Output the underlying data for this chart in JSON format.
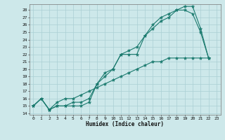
{
  "xlabel": "Humidex (Indice chaleur)",
  "ylabel": "",
  "xlim": [
    -0.5,
    23.5
  ],
  "ylim": [
    13.8,
    28.8
  ],
  "xticks": [
    0,
    1,
    2,
    3,
    4,
    5,
    6,
    7,
    8,
    9,
    10,
    11,
    12,
    13,
    14,
    15,
    16,
    17,
    18,
    19,
    20,
    21,
    22,
    23
  ],
  "yticks": [
    14,
    15,
    16,
    17,
    18,
    19,
    20,
    21,
    22,
    23,
    24,
    25,
    26,
    27,
    28
  ],
  "line_color": "#1a7a6e",
  "bg_color": "#cde8ea",
  "grid_color": "#aacfd4",
  "line1_x": [
    0,
    1,
    2,
    3,
    4,
    5,
    6,
    7,
    8,
    9,
    10,
    11,
    12,
    13,
    14,
    15,
    16,
    17,
    18,
    19,
    20,
    21,
    22
  ],
  "line1_y": [
    15,
    16,
    14.5,
    15,
    15,
    15,
    15,
    15.5,
    18,
    19,
    20,
    22,
    22,
    22,
    24.5,
    25.5,
    26.5,
    27,
    28,
    28.5,
    28.5,
    25.5,
    21.5
  ],
  "line2_x": [
    0,
    1,
    2,
    3,
    4,
    5,
    6,
    7,
    8,
    9,
    10,
    11,
    12,
    13,
    14,
    15,
    16,
    17,
    18,
    19,
    20,
    21,
    22
  ],
  "line2_y": [
    15,
    16,
    14.5,
    15,
    15,
    15.5,
    15.5,
    16,
    18,
    19.5,
    20,
    22,
    22.5,
    23,
    24.5,
    26,
    27,
    27.5,
    28,
    28,
    27.5,
    25,
    21.5
  ],
  "line3_x": [
    0,
    1,
    2,
    3,
    4,
    5,
    6,
    7,
    8,
    9,
    10,
    11,
    12,
    13,
    14,
    15,
    16,
    17,
    18,
    19,
    20,
    21,
    22
  ],
  "line3_y": [
    15,
    16,
    14.5,
    15.5,
    16,
    16,
    16.5,
    17,
    17.5,
    18,
    18.5,
    19,
    19.5,
    20,
    20.5,
    21,
    21,
    21.5,
    21.5,
    21.5,
    21.5,
    21.5,
    21.5
  ]
}
